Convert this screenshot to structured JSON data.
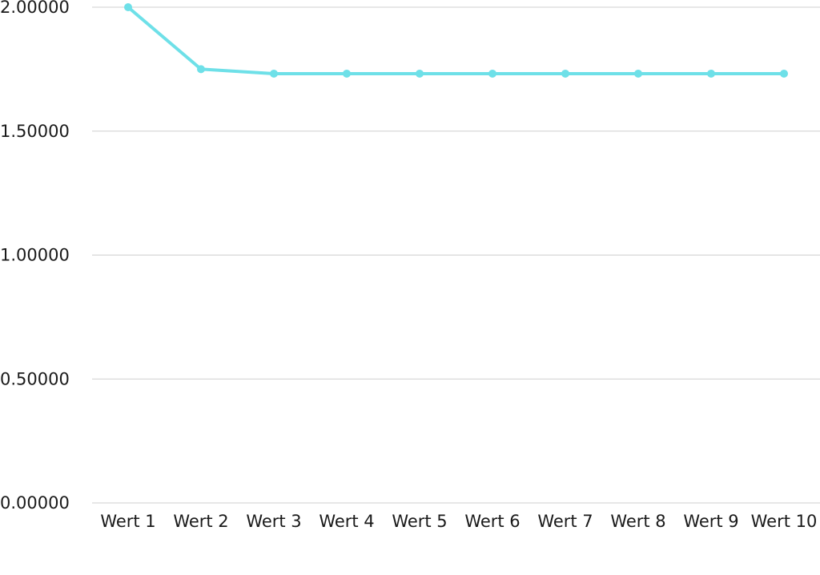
{
  "chart_data": {
    "type": "line",
    "categories": [
      "Wert 1",
      "Wert 2",
      "Wert 3",
      "Wert 4",
      "Wert 5",
      "Wert 6",
      "Wert 7",
      "Wert 8",
      "Wert 9",
      "Wert 10"
    ],
    "series": [
      {
        "values": [
          2.0,
          1.75,
          1.732,
          1.732,
          1.732,
          1.732,
          1.732,
          1.732,
          1.732,
          1.732
        ],
        "color": "#6ee0e8"
      }
    ],
    "y_ticks": [
      "0.00000",
      "0.50000",
      "1.00000",
      "1.50000",
      "2.00000"
    ],
    "ylim": [
      0,
      2
    ],
    "grid": true,
    "legend": "none"
  }
}
